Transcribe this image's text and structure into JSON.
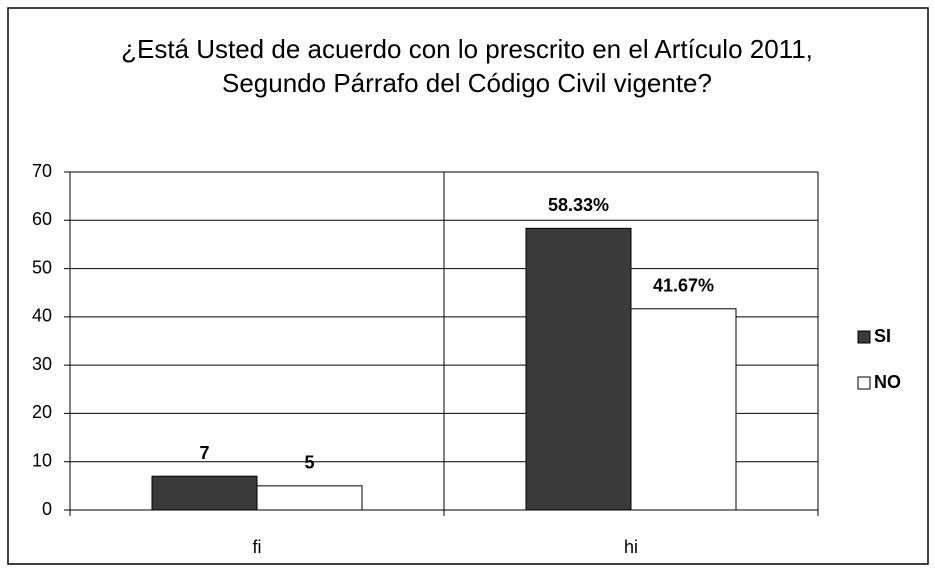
{
  "chart_data": {
    "type": "bar",
    "title": "¿Está Usted de acuerdo con lo prescrito en el Artículo 2011, Segundo Párrafo del Código Civil vigente?",
    "categories": [
      "fi",
      "hi"
    ],
    "series": [
      {
        "name": "SI",
        "color": "#3a3a3a",
        "values": [
          7,
          58.33
        ],
        "value_labels": [
          "7",
          "58.33%"
        ]
      },
      {
        "name": "NO",
        "color": "#ffffff",
        "values": [
          5,
          41.67
        ],
        "value_labels": [
          "5",
          "41.67%"
        ]
      }
    ],
    "ylim": [
      0,
      70
    ],
    "yticks": [
      0,
      10,
      20,
      30,
      40,
      50,
      60,
      70
    ],
    "grid": true,
    "legend": "right"
  }
}
